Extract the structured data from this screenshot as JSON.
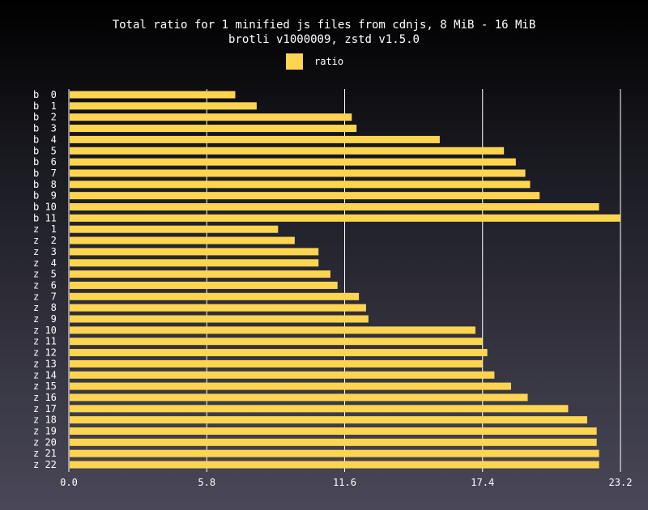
{
  "chart_data": {
    "type": "bar",
    "orientation": "horizontal",
    "title": "Total ratio for 1 minified js files from cdnjs, 8 MiB - 16 MiB",
    "subtitle": "brotli v1000009, zstd v1.5.0",
    "legend": {
      "label": "ratio",
      "placement": "top-center"
    },
    "bar_color": "#ffd54f",
    "grid": true,
    "xlim": [
      0,
      23.2
    ],
    "x_ticks": [
      "0.0",
      "5.8",
      "11.6",
      "17.4",
      "23.2"
    ],
    "categories": [
      "b  0",
      "b  1",
      "b  2",
      "b  3",
      "b  4",
      "b  5",
      "b  6",
      "b  7",
      "b  8",
      "b  9",
      "b 10",
      "b 11",
      "z  1",
      "z  2",
      "z  3",
      "z  4",
      "z  5",
      "z  6",
      "z  7",
      "z  8",
      "z  9",
      "z 10",
      "z 11",
      "z 12",
      "z 13",
      "z 14",
      "z 15",
      "z 16",
      "z 17",
      "z 18",
      "z 19",
      "z 20",
      "z 21",
      "z 22"
    ],
    "series": [
      {
        "name": "ratio",
        "values": [
          7.0,
          7.9,
          11.9,
          12.1,
          15.6,
          18.3,
          18.8,
          19.2,
          19.4,
          19.8,
          22.3,
          23.2,
          8.8,
          9.5,
          10.5,
          10.5,
          11.0,
          11.3,
          12.2,
          12.5,
          12.6,
          17.1,
          17.4,
          17.6,
          17.4,
          17.9,
          18.6,
          19.3,
          21.0,
          21.8,
          22.2,
          22.2,
          22.3,
          22.3
        ]
      }
    ]
  }
}
